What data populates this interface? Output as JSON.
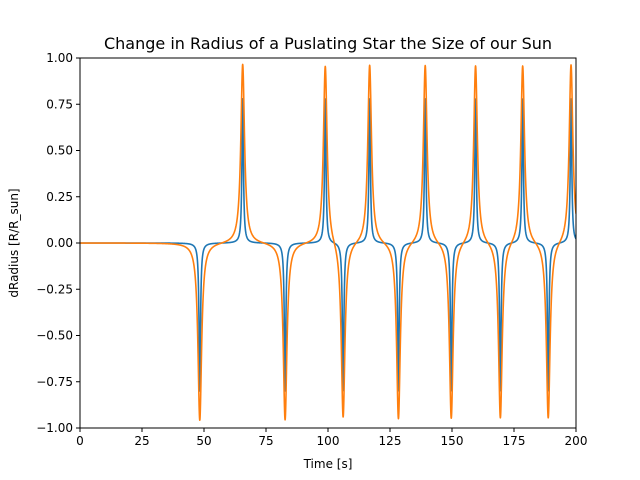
{
  "chart_data": {
    "type": "line",
    "title": "Change in Radius of a Puslating Star the Size of our Sun",
    "xlabel": "Time [s]",
    "ylabel": "dRadius [R/R_sun]",
    "xlim": [
      0,
      200
    ],
    "ylim": [
      -1.0,
      1.0
    ],
    "xticks": [
      0,
      25,
      50,
      75,
      100,
      125,
      150,
      175,
      200
    ],
    "xtick_labels": [
      "0",
      "25",
      "50",
      "75",
      "100",
      "125",
      "150",
      "175",
      "200"
    ],
    "yticks": [
      -1.0,
      -0.75,
      -0.5,
      -0.25,
      0.0,
      0.25,
      0.5,
      0.75,
      1.0
    ],
    "ytick_labels": [
      "−1.00",
      "−0.75",
      "−0.50",
      "−0.25",
      "0.00",
      "0.25",
      "0.50",
      "0.75",
      "1.00"
    ],
    "grid": false,
    "legend": "none",
    "series": [
      {
        "color": "#1f77b4",
        "baseline": 0.0,
        "spikes": [
          {
            "t": 48.3,
            "amp": -0.8
          },
          {
            "t": 65.6,
            "amp": 0.78
          },
          {
            "t": 82.7,
            "amp": -0.8
          },
          {
            "t": 98.9,
            "amp": 0.78
          },
          {
            "t": 106.1,
            "amp": -0.8
          },
          {
            "t": 116.8,
            "amp": 0.78
          },
          {
            "t": 128.4,
            "amp": -0.8
          },
          {
            "t": 139.2,
            "amp": 0.78
          },
          {
            "t": 149.7,
            "amp": -0.8
          },
          {
            "t": 159.5,
            "amp": 0.78
          },
          {
            "t": 169.5,
            "amp": -0.8
          },
          {
            "t": 178.5,
            "amp": 0.78
          },
          {
            "t": 188.8,
            "amp": -0.8
          },
          {
            "t": 198.0,
            "amp": 0.78
          }
        ]
      },
      {
        "color": "#ff7f0e",
        "baseline": 0.0,
        "spikes": [
          {
            "t": 48.3,
            "amp": -0.96
          },
          {
            "t": 65.6,
            "amp": 0.97
          },
          {
            "t": 82.7,
            "amp": -0.96
          },
          {
            "t": 98.9,
            "amp": 0.97
          },
          {
            "t": 106.1,
            "amp": -0.96
          },
          {
            "t": 116.8,
            "amp": 0.97
          },
          {
            "t": 128.4,
            "amp": -0.96
          },
          {
            "t": 139.2,
            "amp": 0.97
          },
          {
            "t": 149.7,
            "amp": -0.96
          },
          {
            "t": 159.5,
            "amp": 0.97
          },
          {
            "t": 169.5,
            "amp": -0.96
          },
          {
            "t": 178.5,
            "amp": 0.97
          },
          {
            "t": 188.8,
            "amp": -0.96
          },
          {
            "t": 198.0,
            "amp": 0.97
          }
        ]
      }
    ]
  }
}
